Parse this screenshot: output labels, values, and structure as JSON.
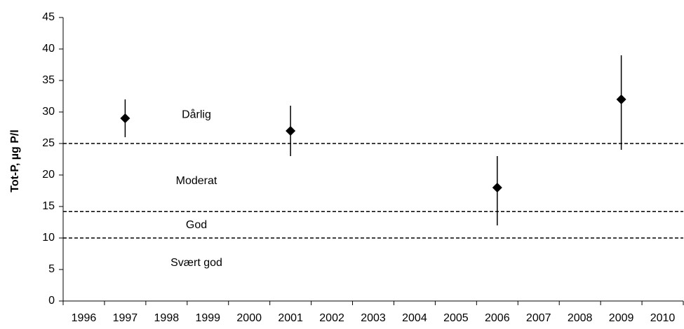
{
  "chart_data": {
    "type": "errorpoint",
    "y_label": "Tot-P, µg P/l",
    "categories": [
      "1996",
      "1997",
      "1998",
      "1999",
      "2000",
      "2001",
      "2002",
      "2003",
      "2004",
      "2005",
      "2006",
      "2007",
      "2008",
      "2009",
      "2010"
    ],
    "values": [
      null,
      29,
      null,
      null,
      null,
      27,
      null,
      null,
      null,
      null,
      18,
      null,
      null,
      32,
      null
    ],
    "low": [
      null,
      26,
      null,
      null,
      null,
      23,
      null,
      null,
      null,
      null,
      12,
      null,
      null,
      24,
      null
    ],
    "high": [
      null,
      32,
      null,
      null,
      null,
      31,
      null,
      null,
      null,
      null,
      23,
      null,
      null,
      39,
      null
    ],
    "color": "#000000",
    "ylim": [
      0,
      45
    ],
    "yticks": [
      0,
      5,
      10,
      15,
      20,
      25,
      30,
      35,
      40,
      45
    ],
    "thresholds": [
      25,
      14.2,
      10
    ],
    "zone_labels": [
      {
        "text": "Dårlig",
        "y": 29.5
      },
      {
        "text": "Moderat",
        "y": 19
      },
      {
        "text": "God",
        "y": 12
      },
      {
        "text": "Svært god",
        "y": 6
      }
    ],
    "grid": false
  }
}
